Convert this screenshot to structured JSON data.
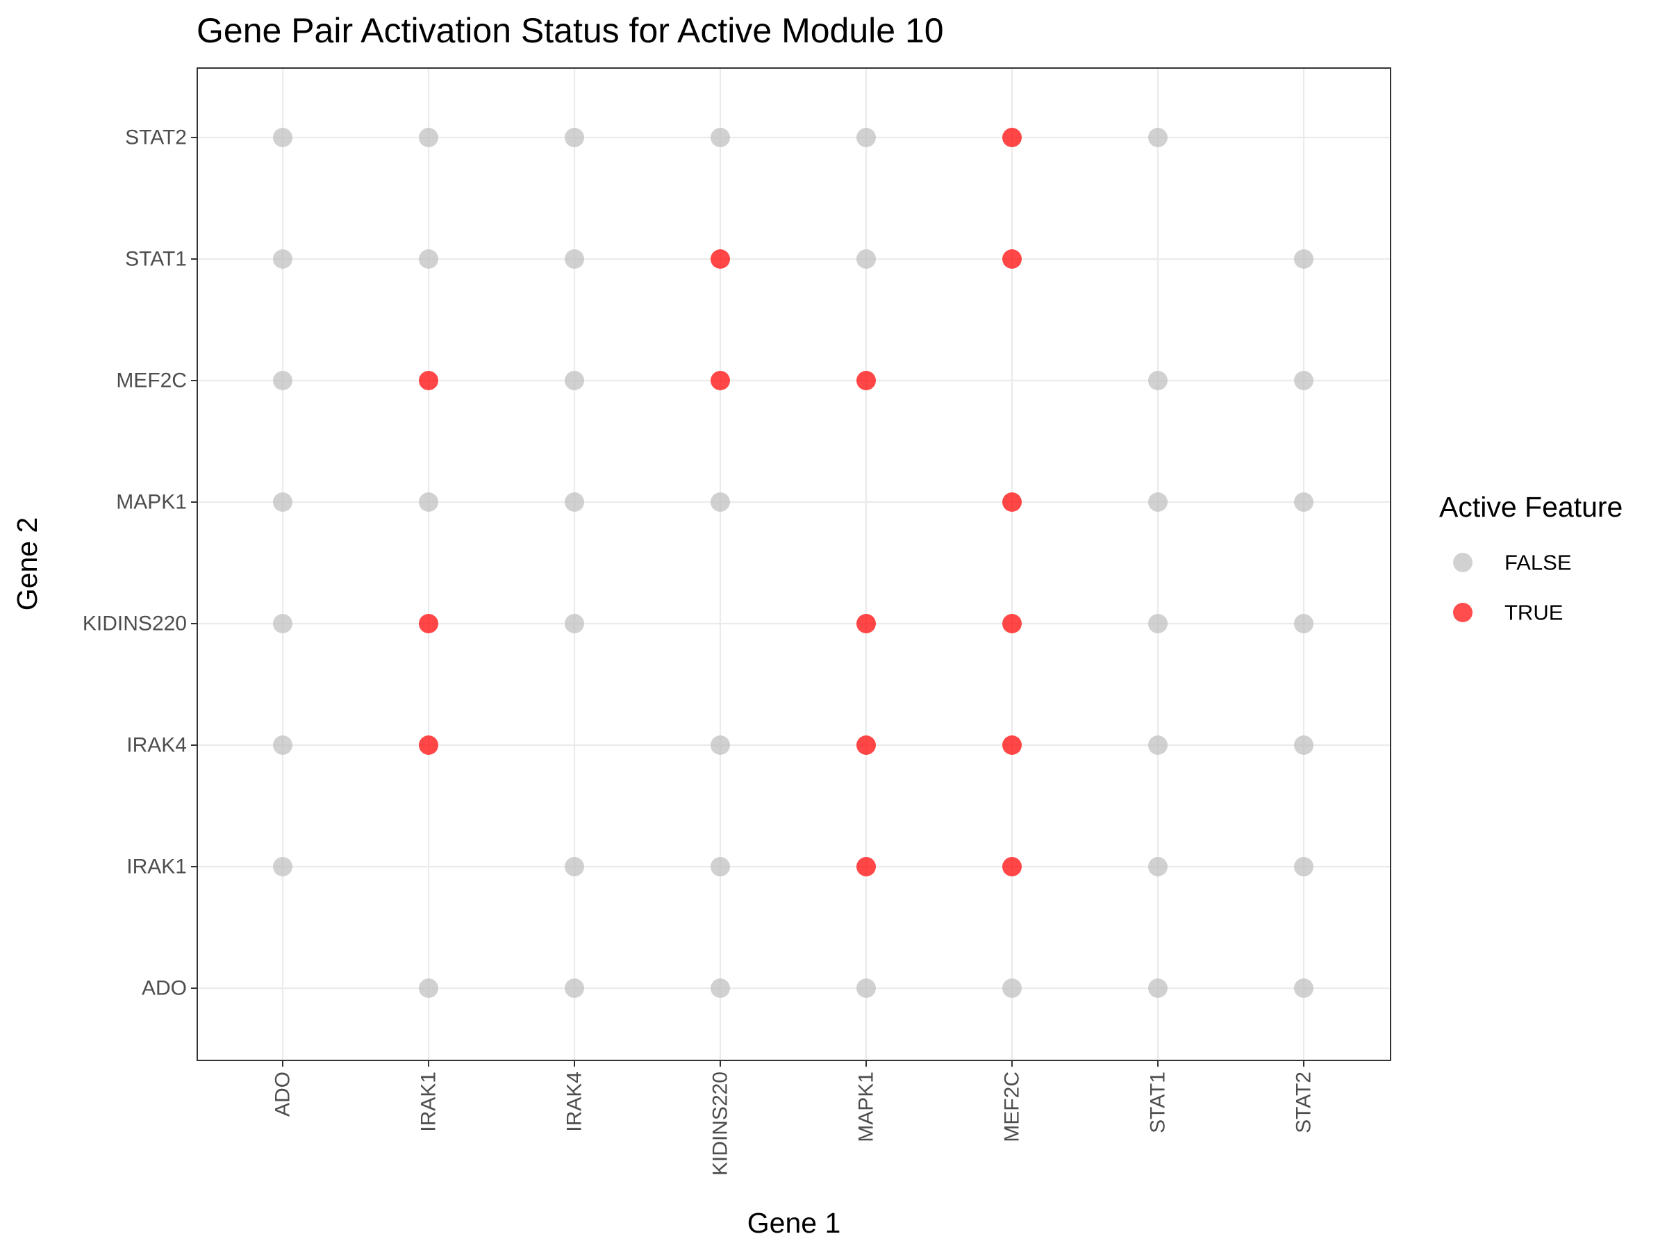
{
  "chart_data": {
    "type": "scatter",
    "title": "Gene Pair Activation Status for Active Module 10",
    "xlabel": "Gene 1",
    "ylabel": "Gene 2",
    "x_categories": [
      "ADO",
      "IRAK1",
      "IRAK4",
      "KIDINS220",
      "MAPK1",
      "MEF2C",
      "STAT1",
      "STAT2"
    ],
    "y_categories": [
      "ADO",
      "IRAK1",
      "IRAK4",
      "KIDINS220",
      "MAPK1",
      "MEF2C",
      "STAT1",
      "STAT2"
    ],
    "grid": true,
    "legend": {
      "title": "Active Feature",
      "position": "right",
      "entries": [
        {
          "label": "FALSE",
          "color": "#bebebe"
        },
        {
          "label": "TRUE",
          "color": "#ff0000"
        }
      ]
    },
    "colors": {
      "false": "#bebebe",
      "true": "#ff0000"
    },
    "points": [
      {
        "x": "ADO",
        "y": "STAT2",
        "active": false
      },
      {
        "x": "ADO",
        "y": "STAT1",
        "active": false
      },
      {
        "x": "ADO",
        "y": "MEF2C",
        "active": false
      },
      {
        "x": "ADO",
        "y": "MAPK1",
        "active": false
      },
      {
        "x": "ADO",
        "y": "KIDINS220",
        "active": false
      },
      {
        "x": "ADO",
        "y": "IRAK4",
        "active": false
      },
      {
        "x": "ADO",
        "y": "IRAK1",
        "active": false
      },
      {
        "x": "IRAK1",
        "y": "STAT2",
        "active": false
      },
      {
        "x": "IRAK1",
        "y": "STAT1",
        "active": false
      },
      {
        "x": "IRAK1",
        "y": "MEF2C",
        "active": true
      },
      {
        "x": "IRAK1",
        "y": "MAPK1",
        "active": false
      },
      {
        "x": "IRAK1",
        "y": "KIDINS220",
        "active": true
      },
      {
        "x": "IRAK1",
        "y": "IRAK4",
        "active": true
      },
      {
        "x": "IRAK1",
        "y": "ADO",
        "active": false
      },
      {
        "x": "IRAK4",
        "y": "STAT2",
        "active": false
      },
      {
        "x": "IRAK4",
        "y": "STAT1",
        "active": false
      },
      {
        "x": "IRAK4",
        "y": "MEF2C",
        "active": false
      },
      {
        "x": "IRAK4",
        "y": "MAPK1",
        "active": false
      },
      {
        "x": "IRAK4",
        "y": "KIDINS220",
        "active": false
      },
      {
        "x": "IRAK4",
        "y": "IRAK1",
        "active": false
      },
      {
        "x": "IRAK4",
        "y": "ADO",
        "active": false
      },
      {
        "x": "KIDINS220",
        "y": "STAT2",
        "active": false
      },
      {
        "x": "KIDINS220",
        "y": "STAT1",
        "active": true
      },
      {
        "x": "KIDINS220",
        "y": "MEF2C",
        "active": true
      },
      {
        "x": "KIDINS220",
        "y": "MAPK1",
        "active": false
      },
      {
        "x": "KIDINS220",
        "y": "IRAK4",
        "active": false
      },
      {
        "x": "KIDINS220",
        "y": "IRAK1",
        "active": false
      },
      {
        "x": "KIDINS220",
        "y": "ADO",
        "active": false
      },
      {
        "x": "MAPK1",
        "y": "STAT2",
        "active": false
      },
      {
        "x": "MAPK1",
        "y": "STAT1",
        "active": false
      },
      {
        "x": "MAPK1",
        "y": "MEF2C",
        "active": true
      },
      {
        "x": "MAPK1",
        "y": "KIDINS220",
        "active": true
      },
      {
        "x": "MAPK1",
        "y": "IRAK4",
        "active": true
      },
      {
        "x": "MAPK1",
        "y": "IRAK1",
        "active": true
      },
      {
        "x": "MAPK1",
        "y": "ADO",
        "active": false
      },
      {
        "x": "MEF2C",
        "y": "STAT2",
        "active": true
      },
      {
        "x": "MEF2C",
        "y": "STAT1",
        "active": true
      },
      {
        "x": "MEF2C",
        "y": "MAPK1",
        "active": true
      },
      {
        "x": "MEF2C",
        "y": "KIDINS220",
        "active": true
      },
      {
        "x": "MEF2C",
        "y": "IRAK4",
        "active": true
      },
      {
        "x": "MEF2C",
        "y": "IRAK1",
        "active": true
      },
      {
        "x": "MEF2C",
        "y": "ADO",
        "active": false
      },
      {
        "x": "STAT1",
        "y": "STAT2",
        "active": false
      },
      {
        "x": "STAT1",
        "y": "MEF2C",
        "active": false
      },
      {
        "x": "STAT1",
        "y": "MAPK1",
        "active": false
      },
      {
        "x": "STAT1",
        "y": "KIDINS220",
        "active": false
      },
      {
        "x": "STAT1",
        "y": "IRAK4",
        "active": false
      },
      {
        "x": "STAT1",
        "y": "IRAK1",
        "active": false
      },
      {
        "x": "STAT1",
        "y": "ADO",
        "active": false
      },
      {
        "x": "STAT2",
        "y": "STAT1",
        "active": false
      },
      {
        "x": "STAT2",
        "y": "MEF2C",
        "active": false
      },
      {
        "x": "STAT2",
        "y": "MAPK1",
        "active": false
      },
      {
        "x": "STAT2",
        "y": "KIDINS220",
        "active": false
      },
      {
        "x": "STAT2",
        "y": "IRAK4",
        "active": false
      },
      {
        "x": "STAT2",
        "y": "IRAK1",
        "active": false
      },
      {
        "x": "STAT2",
        "y": "ADO",
        "active": false
      }
    ]
  }
}
